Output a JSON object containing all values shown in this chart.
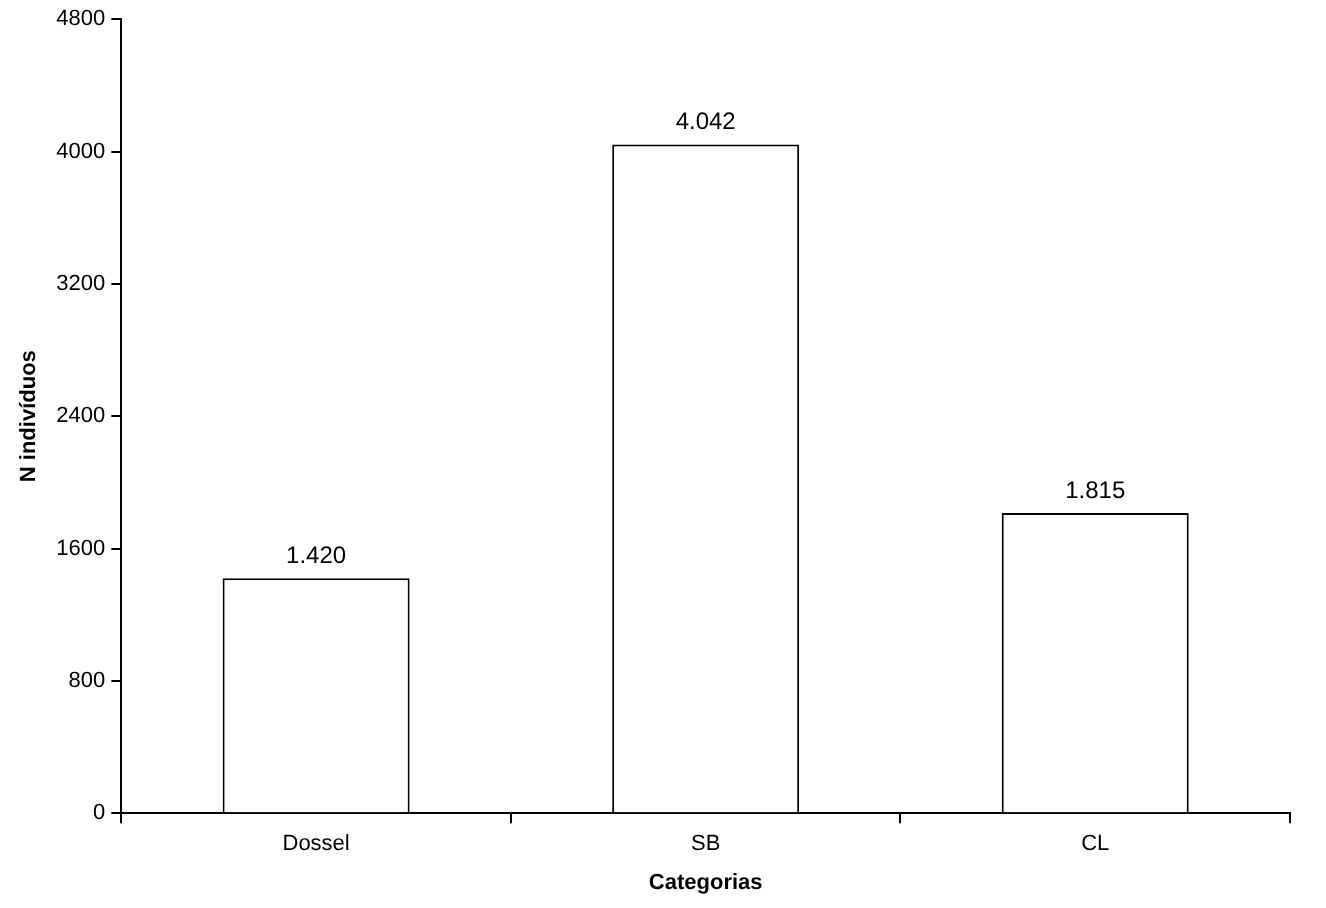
{
  "chart_data": {
    "type": "bar",
    "xlabel": "Categorias",
    "ylabel": "N indivíduos",
    "categories": [
      "Dossel",
      "SB",
      "CL"
    ],
    "values": [
      1420,
      4042,
      1815
    ],
    "value_labels": [
      "1.420",
      "4.042",
      "1.815"
    ],
    "color": "#ffffff",
    "ylim": [
      0,
      4800
    ],
    "yticks": [
      0,
      800,
      1600,
      2400,
      3200,
      4000,
      4800
    ],
    "grid": false,
    "legend": false
  }
}
